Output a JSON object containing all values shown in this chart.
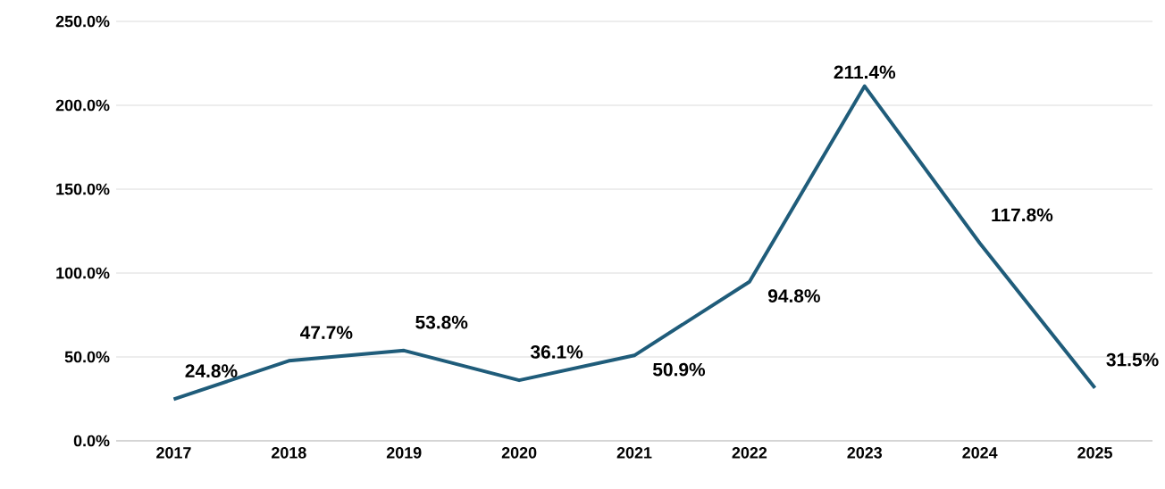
{
  "chart_data": {
    "type": "line",
    "categories": [
      "2017",
      "2018",
      "2019",
      "2020",
      "2021",
      "2022",
      "2023",
      "2024",
      "2025"
    ],
    "values": [
      24.8,
      47.7,
      53.8,
      36.1,
      50.9,
      94.8,
      211.4,
      117.8,
      31.5
    ],
    "value_labels": [
      "24.8%",
      "47.7%",
      "53.8%",
      "36.1%",
      "50.9%",
      "94.8%",
      "211.4%",
      "117.8%",
      "31.5%"
    ],
    "color": "#1f5c7a",
    "ylim": [
      0,
      250
    ],
    "yticks": [
      {
        "value": 0,
        "label": "0.0%"
      },
      {
        "value": 50,
        "label": "50.0%"
      },
      {
        "value": 100,
        "label": "100.0%"
      },
      {
        "value": 150,
        "label": "150.0%"
      },
      {
        "value": 200,
        "label": "200.0%"
      },
      {
        "value": 250,
        "label": "250.0%"
      }
    ],
    "grid": "y",
    "marker": "none",
    "line_style": "solid"
  }
}
